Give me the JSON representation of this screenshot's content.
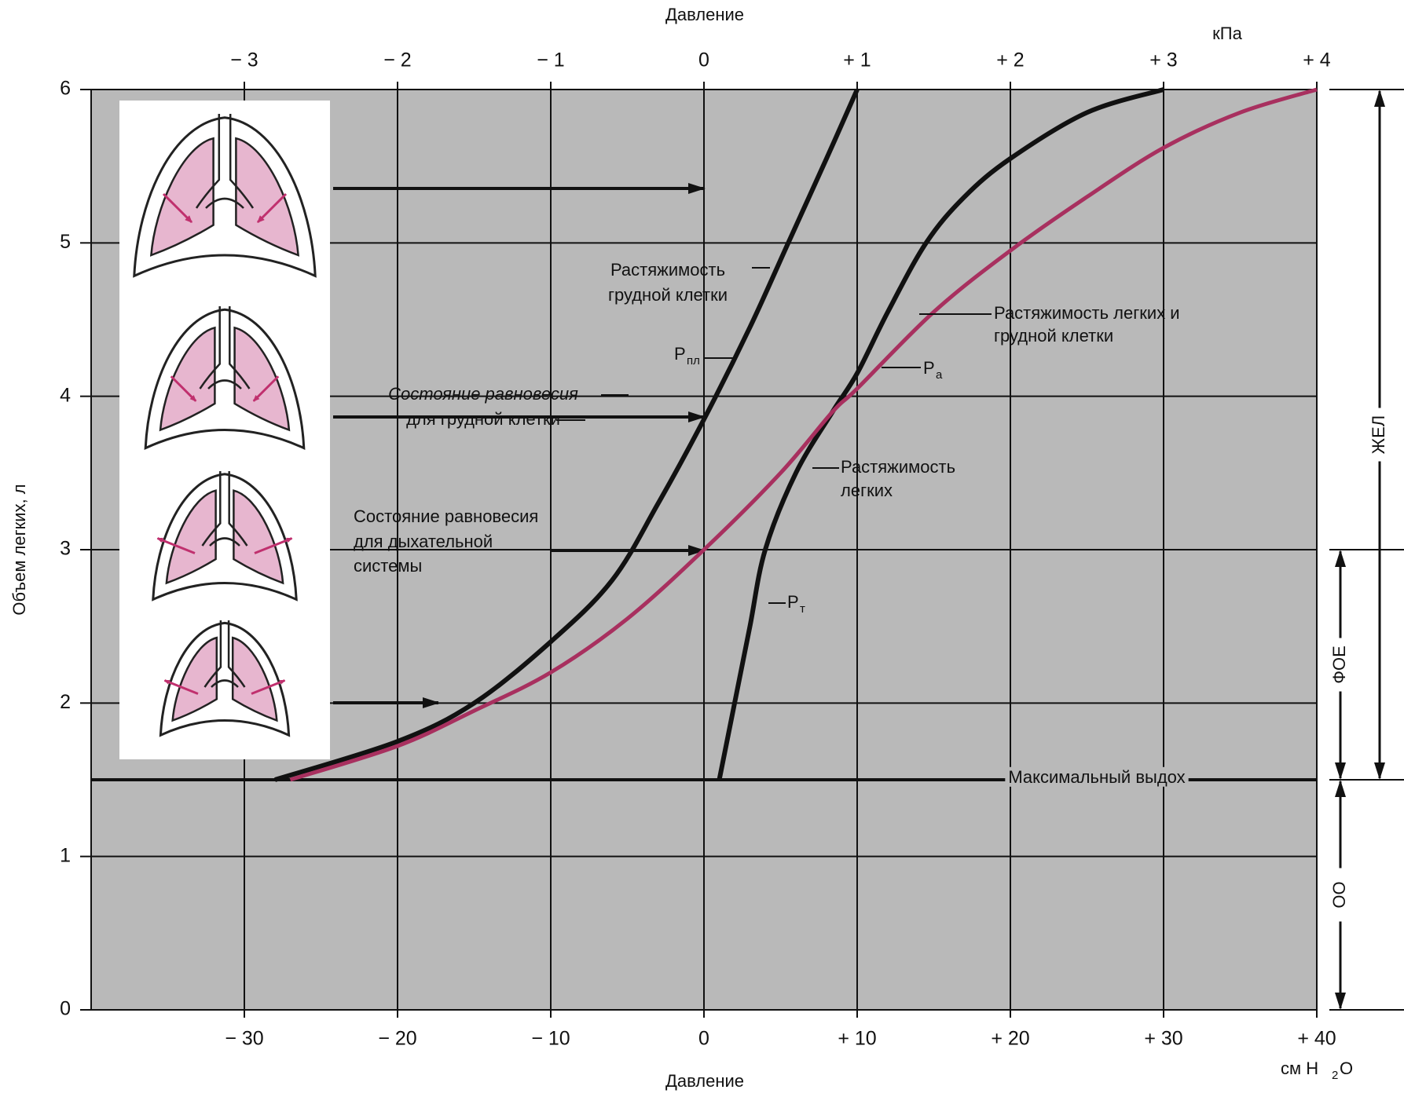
{
  "chart_data": {
    "type": "line",
    "xlabel": "Давление",
    "xunit": {
      "main": "см H",
      "sub": "2",
      "tail": "O"
    },
    "x2label": "Давление",
    "x2unit": "кПа",
    "ylabel": "Объем легких, л",
    "xlim": [
      -40,
      40
    ],
    "xticks": [
      {
        "value": -30,
        "label": "− 30"
      },
      {
        "value": -20,
        "label": "− 20"
      },
      {
        "value": -10,
        "label": "− 10"
      },
      0,
      {
        "value": 10,
        "label": "+ 10"
      },
      {
        "value": 20,
        "label": "+ 20"
      },
      {
        "value": 30,
        "label": "+ 30"
      },
      {
        "value": 40,
        "label": "+ 40"
      }
    ],
    "x2lim": [
      -4,
      4
    ],
    "x2ticks": [
      {
        "value": -3,
        "label": "− 3"
      },
      {
        "value": -2,
        "label": "− 2"
      },
      {
        "value": -1,
        "label": "− 1"
      },
      0,
      {
        "value": 1,
        "label": "+ 1"
      },
      {
        "value": 2,
        "label": "+ 2"
      },
      {
        "value": 3,
        "label": "+ 3"
      },
      {
        "value": 4,
        "label": "+ 4"
      }
    ],
    "ylim": [
      0,
      6
    ],
    "yticks": [
      0,
      1,
      2,
      3,
      4,
      5,
      6
    ],
    "grid": true,
    "series": [
      {
        "label_lines": [
          "Растяжимость",
          "грудной клетки"
        ],
        "symbol": {
          "main": "P",
          "sub": "пл"
        },
        "color": "#111111",
        "x": [
          -28,
          -20,
          -15,
          -10,
          -6,
          -3,
          0,
          3,
          5.5,
          8,
          10
        ],
        "values": [
          1.5,
          1.75,
          2.0,
          2.4,
          2.8,
          3.3,
          3.85,
          4.45,
          5.0,
          5.55,
          6
        ]
      },
      {
        "label_lines": [
          "Растяжимость",
          "легких"
        ],
        "symbol": {
          "main": "P",
          "sub": "т"
        },
        "color": "#111111",
        "x": [
          1,
          2,
          3,
          4,
          6,
          8.4,
          10,
          12,
          14.5,
          17,
          20,
          25,
          30
        ],
        "values": [
          1.5,
          2.0,
          2.5,
          3.0,
          3.5,
          3.9,
          4.15,
          4.55,
          5.0,
          5.3,
          5.55,
          5.85,
          6
        ]
      },
      {
        "label_lines": [
          "Растяжимость легких и",
          "грудной клетки"
        ],
        "symbol": {
          "main": "P",
          "sub": "а"
        },
        "color": "#a8305f",
        "x": [
          -27,
          -20,
          -15,
          -10,
          -5,
          0,
          5,
          8.4,
          10,
          15,
          20,
          25,
          30,
          35,
          40
        ],
        "values": [
          1.5,
          1.72,
          1.95,
          2.2,
          2.55,
          3.0,
          3.5,
          3.9,
          4.05,
          4.55,
          4.95,
          5.3,
          5.62,
          5.85,
          6
        ]
      }
    ],
    "reference_line": {
      "label": "Максимальный выдох",
      "value": 1.5
    },
    "equilibrium_labels": [
      {
        "lines": [
          "Состояние равновесия",
          "для грудной  клетки"
        ]
      },
      {
        "lines": [
          "Состояние равновесия",
          "для дыхательной",
          "системы"
        ]
      }
    ],
    "brackets": [
      {
        "label": "ЖЕЛ",
        "from": 1.5,
        "to": 6
      },
      {
        "label": "ФОЕ",
        "from": 1.5,
        "to": 3
      },
      {
        "label": "ОО",
        "from": 0,
        "to": 1.5
      }
    ]
  }
}
